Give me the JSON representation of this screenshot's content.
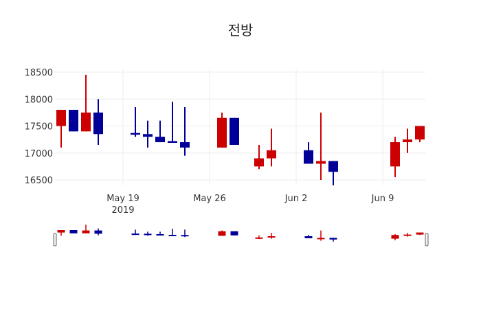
{
  "chart_data": {
    "type": "candlestick",
    "title": "전방",
    "xlabel": "",
    "ylabel": "",
    "ylim": [
      16250,
      18700
    ],
    "grid": true,
    "x_ticks": [
      {
        "label": "May 19",
        "sub": "2019",
        "date": "2019-05-19"
      },
      {
        "label": "May 26",
        "sub": "",
        "date": "2019-05-26"
      },
      {
        "label": "Jun 2",
        "sub": "",
        "date": "2019-06-02"
      },
      {
        "label": "Jun 9",
        "sub": "",
        "date": "2019-06-09"
      }
    ],
    "y_ticks": [
      16500,
      17000,
      17500,
      18000,
      18500
    ],
    "increasing_color": "#cc0000",
    "decreasing_color": "#000099",
    "rangeslider": true,
    "candles": [
      {
        "date": "2019-05-14",
        "open": 17500,
        "high": 17800,
        "low": 17100,
        "close": 17800
      },
      {
        "date": "2019-05-15",
        "open": 17800,
        "high": 17800,
        "low": 17400,
        "close": 17400
      },
      {
        "date": "2019-05-16",
        "open": 17400,
        "high": 18450,
        "low": 17400,
        "close": 17750
      },
      {
        "date": "2019-05-17",
        "open": 17750,
        "high": 18000,
        "low": 17150,
        "close": 17350
      },
      {
        "date": "2019-05-20",
        "open": 17370,
        "high": 17850,
        "low": 17300,
        "close": 17350
      },
      {
        "date": "2019-05-21",
        "open": 17350,
        "high": 17600,
        "low": 17100,
        "close": 17300
      },
      {
        "date": "2019-05-22",
        "open": 17300,
        "high": 17600,
        "low": 17200,
        "close": 17200
      },
      {
        "date": "2019-05-23",
        "open": 17220,
        "high": 17950,
        "low": 17200,
        "close": 17200
      },
      {
        "date": "2019-05-24",
        "open": 17200,
        "high": 17850,
        "low": 16950,
        "close": 17100
      },
      {
        "date": "2019-05-27",
        "open": 17100,
        "high": 17750,
        "low": 17100,
        "close": 17650
      },
      {
        "date": "2019-05-28",
        "open": 17650,
        "high": 17650,
        "low": 17150,
        "close": 17150
      },
      {
        "date": "2019-05-30",
        "open": 16750,
        "high": 17150,
        "low": 16700,
        "close": 16900
      },
      {
        "date": "2019-05-31",
        "open": 16900,
        "high": 17450,
        "low": 16750,
        "close": 17050
      },
      {
        "date": "2019-06-03",
        "open": 17050,
        "high": 17200,
        "low": 16800,
        "close": 16800
      },
      {
        "date": "2019-06-04",
        "open": 16800,
        "high": 17750,
        "low": 16500,
        "close": 16850
      },
      {
        "date": "2019-06-05",
        "open": 16850,
        "high": 16850,
        "low": 16400,
        "close": 16650
      },
      {
        "date": "2019-06-10",
        "open": 16750,
        "high": 17300,
        "low": 16550,
        "close": 17200
      },
      {
        "date": "2019-06-11",
        "open": 17200,
        "high": 17450,
        "low": 17000,
        "close": 17250
      },
      {
        "date": "2019-06-12",
        "open": 17250,
        "high": 17500,
        "low": 17200,
        "close": 17500
      }
    ]
  }
}
